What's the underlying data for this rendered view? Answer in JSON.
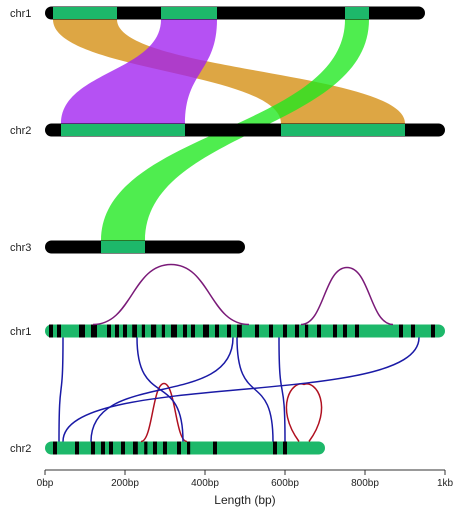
{
  "colors": {
    "chromosome": "#000000",
    "block": "#1db86a",
    "orange": "#d48d10",
    "purple": "#a020f0",
    "lime": "#1ee81e",
    "blue_arc": "#1a1aa6",
    "red_arc": "#b01020",
    "violet_arc": "#7a1a78"
  },
  "synteny": {
    "chromosomes": [
      {
        "label": "chr1",
        "length": 950
      },
      {
        "label": "chr2",
        "length": 1000
      },
      {
        "label": "chr3",
        "length": 500
      }
    ],
    "blocks": [
      {
        "chrom": 0,
        "start": 20,
        "end": 180
      },
      {
        "chrom": 0,
        "start": 290,
        "end": 430
      },
      {
        "chrom": 0,
        "start": 750,
        "end": 810
      },
      {
        "chrom": 1,
        "start": 40,
        "end": 350
      },
      {
        "chrom": 1,
        "start": 590,
        "end": 900
      },
      {
        "chrom": 2,
        "start": 140,
        "end": 250
      }
    ],
    "links": [
      {
        "color": "orange",
        "from": [
          0,
          20,
          180
        ],
        "to": [
          1,
          590,
          900
        ]
      },
      {
        "color": "purple",
        "from": [
          0,
          290,
          430
        ],
        "to": [
          1,
          40,
          350
        ]
      },
      {
        "color": "lime",
        "from": [
          0,
          750,
          810
        ],
        "to": [
          2,
          140,
          250
        ]
      }
    ]
  },
  "karyotype": {
    "chromosomes": [
      {
        "label": "chr1",
        "length": 1000
      },
      {
        "label": "chr2",
        "length": 700
      }
    ],
    "bands": [
      [
        0,
        10,
        20
      ],
      [
        0,
        30,
        40
      ],
      [
        0,
        85,
        100
      ],
      [
        0,
        115,
        130
      ],
      [
        0,
        155,
        165
      ],
      [
        0,
        175,
        185
      ],
      [
        0,
        195,
        205
      ],
      [
        0,
        218,
        230
      ],
      [
        0,
        242,
        250
      ],
      [
        0,
        265,
        278
      ],
      [
        0,
        292,
        300
      ],
      [
        0,
        315,
        330
      ],
      [
        0,
        345,
        355
      ],
      [
        0,
        365,
        375
      ],
      [
        0,
        395,
        410
      ],
      [
        0,
        425,
        435
      ],
      [
        0,
        455,
        465
      ],
      [
        0,
        480,
        492
      ],
      [
        0,
        525,
        535
      ],
      [
        0,
        560,
        570
      ],
      [
        0,
        595,
        605
      ],
      [
        0,
        625,
        635
      ],
      [
        0,
        650,
        658
      ],
      [
        0,
        680,
        690
      ],
      [
        0,
        720,
        730
      ],
      [
        0,
        745,
        755
      ],
      [
        0,
        775,
        785
      ],
      [
        0,
        885,
        895
      ],
      [
        0,
        915,
        925
      ],
      [
        0,
        965,
        975
      ],
      [
        1,
        20,
        30
      ],
      [
        1,
        75,
        85
      ],
      [
        1,
        115,
        125
      ],
      [
        1,
        140,
        150
      ],
      [
        1,
        160,
        170
      ],
      [
        1,
        190,
        200
      ],
      [
        1,
        220,
        232
      ],
      [
        1,
        248,
        256
      ],
      [
        1,
        270,
        280
      ],
      [
        1,
        295,
        305
      ],
      [
        1,
        330,
        340
      ],
      [
        1,
        355,
        363
      ],
      [
        1,
        420,
        430
      ],
      [
        1,
        570,
        580
      ],
      [
        1,
        595,
        605
      ]
    ],
    "arcs": [
      {
        "color": "violet_arc",
        "chrom": 0,
        "x1": 120,
        "x2": 510,
        "h": 60
      },
      {
        "color": "violet_arc",
        "chrom": 0,
        "x1": 640,
        "x2": 870,
        "h": 57
      },
      {
        "color": "red_arc",
        "chrom": 1,
        "x1": 240,
        "x2": 355,
        "h": 58
      },
      {
        "color": "red_arc",
        "chrom": 1,
        "x1": 635,
        "x2": 660,
        "h": 62,
        "loop": true
      },
      {
        "color": "blue_arc",
        "from": [
          0,
          45
        ],
        "to": [
          1,
          35
        ]
      },
      {
        "color": "blue_arc",
        "from": [
          0,
          230
        ],
        "to": [
          1,
          345
        ]
      },
      {
        "color": "blue_arc",
        "from": [
          0,
          470
        ],
        "to": [
          1,
          115
        ]
      },
      {
        "color": "blue_arc",
        "from": [
          0,
          480
        ],
        "to": [
          1,
          570
        ]
      },
      {
        "color": "blue_arc",
        "from": [
          0,
          585
        ],
        "to": [
          1,
          600
        ]
      },
      {
        "color": "blue_arc",
        "from": [
          0,
          935
        ],
        "to": [
          1,
          45
        ]
      }
    ]
  },
  "axis": {
    "ticks": [
      0,
      200,
      400,
      600,
      800,
      1000
    ],
    "tick_labels": [
      "0bp",
      "200bp",
      "400bp",
      "600bp",
      "800bp",
      "1kb"
    ],
    "title": "Length (bp)"
  }
}
